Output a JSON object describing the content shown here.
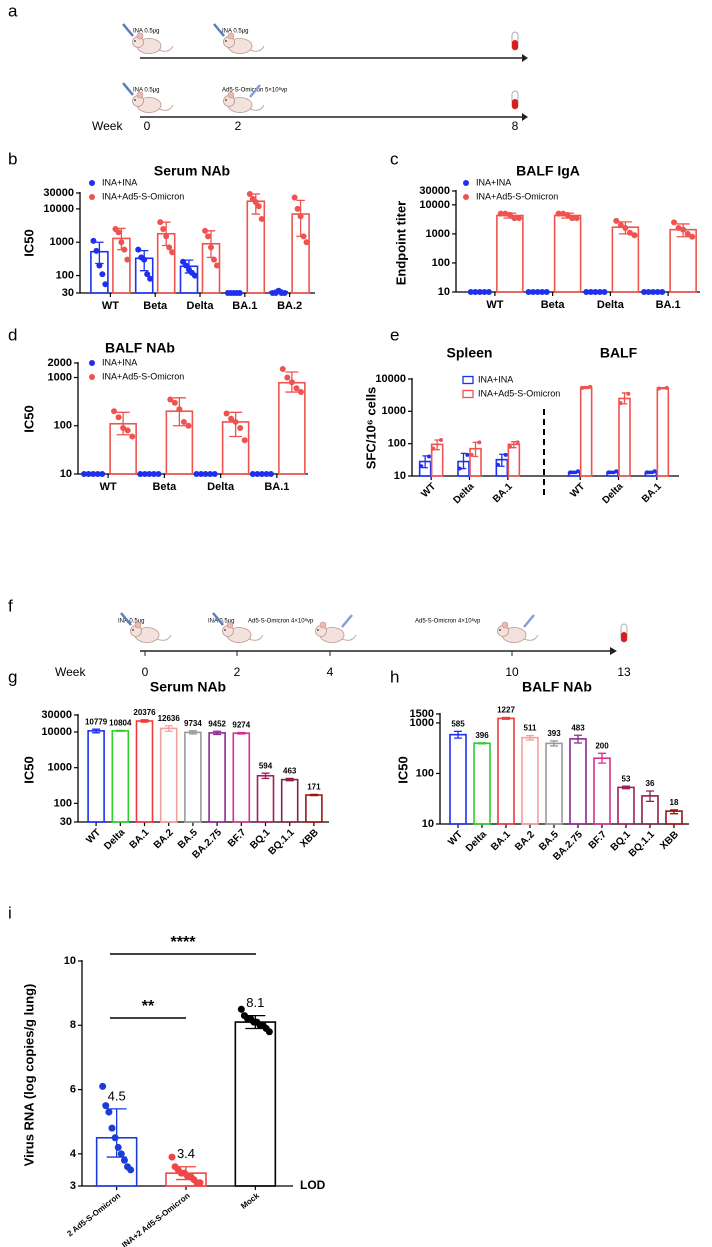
{
  "panel_labels": [
    "a",
    "b",
    "c",
    "d",
    "e",
    "f",
    "g",
    "h",
    "i"
  ],
  "schedule_a": {
    "rows": [
      [
        "INA 0.5μg",
        "INA 0.5μg"
      ],
      [
        "INA 0.5μg",
        "Ad5-S-Omicron 5×10⁸vp"
      ]
    ],
    "axis_label": "Week",
    "ticks": [
      0,
      2,
      8
    ]
  },
  "schedule_f": {
    "rows": [
      [
        "INA 0.5μg",
        "INA 0.5μg",
        "Ad5-S-Omicron 4×10⁸vp",
        "Ad5-S-Omicron 4×10⁸vp"
      ]
    ],
    "axis_label": "Week",
    "ticks": [
      0,
      2,
      4,
      10,
      13
    ]
  },
  "chart_data": [
    {
      "type": "bar",
      "title": "Serum NAb",
      "y_label": "IC50",
      "log_scale": true,
      "ylim": [
        30,
        30000
      ],
      "yticks": [
        30,
        100,
        1000,
        10000,
        30000
      ],
      "categories": [
        "WT",
        "Beta",
        "Delta",
        "BA.1",
        "BA.2"
      ],
      "legend": "top-left",
      "legend_marker": "circle",
      "series": [
        {
          "name": "INA+INA",
          "color": "#1f2ff0",
          "values": [
            520,
            330,
            190,
            30,
            33
          ],
          "errors": [
            [
              230,
              1000
            ],
            [
              140,
              560
            ],
            [
              120,
              290
            ],
            [
              30,
              30
            ],
            [
              30,
              37
            ]
          ],
          "points": [
            [
              1100,
              550,
              200,
              110,
              55
            ],
            [
              600,
              350,
              300,
              110,
              80
            ],
            [
              260,
              200,
              150,
              120,
              100
            ],
            [
              30,
              30,
              30,
              30,
              30
            ],
            [
              30,
              30,
              35,
              30,
              30
            ]
          ]
        },
        {
          "name": "INA+Ad5-S-Omicron",
          "color": "#ef5350",
          "values": [
            1300,
            1800,
            900,
            17000,
            7000
          ],
          "errors": [
            [
              600,
              2600
            ],
            [
              800,
              4000
            ],
            [
              350,
              2200
            ],
            [
              7000,
              28000
            ],
            [
              1500,
              18000
            ]
          ],
          "points": [
            [
              2500,
              2000,
              1000,
              600,
              300
            ],
            [
              4000,
              2500,
              1500,
              700,
              500
            ],
            [
              2200,
              1500,
              700,
              300,
              200
            ],
            [
              28000,
              20000,
              16000,
              12000,
              5000
            ],
            [
              22000,
              10000,
              6000,
              1500,
              1000
            ]
          ]
        }
      ]
    },
    {
      "type": "bar",
      "title": "BALF IgA",
      "y_label": "Endpoint  titer",
      "log_scale": true,
      "ylim": [
        10,
        30000
      ],
      "yticks": [
        10,
        100,
        1000,
        10000,
        30000
      ],
      "categories": [
        "WT",
        "Beta",
        "Delta",
        "BA.1"
      ],
      "legend": "top-left",
      "legend_marker": "circle",
      "series": [
        {
          "name": "INA+INA",
          "color": "#1f2ff0",
          "values": [
            10,
            10,
            10,
            10
          ],
          "errors": [
            [
              10,
              10
            ],
            [
              10,
              10
            ],
            [
              10,
              10
            ],
            [
              10,
              10
            ]
          ],
          "points": [
            [
              10,
              10,
              10,
              10,
              10
            ],
            [
              10,
              10,
              10,
              10,
              10
            ],
            [
              10,
              10,
              10,
              10,
              10
            ],
            [
              10,
              10,
              10,
              10,
              10
            ]
          ]
        },
        {
          "name": "INA+Ad5-S-Omicron",
          "color": "#ef5350",
          "values": [
            4300,
            4300,
            1700,
            1400
          ],
          "errors": [
            [
              3500,
              5200
            ],
            [
              3500,
              5200
            ],
            [
              1000,
              2600
            ],
            [
              800,
              2200
            ]
          ],
          "points": [
            [
              5000,
              5000,
              4500,
              3500,
              3500
            ],
            [
              5000,
              5000,
              4500,
              3500,
              3500
            ],
            [
              2800,
              2000,
              1600,
              1100,
              900
            ],
            [
              2500,
              1600,
              1400,
              1000,
              800
            ]
          ]
        }
      ]
    },
    {
      "type": "bar",
      "title": "BALF NAb",
      "y_label": "IC50",
      "log_scale": true,
      "ylim": [
        10,
        2000
      ],
      "yticks": [
        10,
        100,
        1000,
        2000
      ],
      "categories": [
        "WT",
        "Beta",
        "Delta",
        "BA.1"
      ],
      "legend": "top-left",
      "legend_marker": "circle",
      "series": [
        {
          "name": "INA+INA",
          "color": "#1f2ff0",
          "values": [
            10,
            10,
            10,
            10
          ],
          "errors": [
            [
              10,
              10
            ],
            [
              10,
              10
            ],
            [
              10,
              10
            ],
            [
              10,
              10
            ]
          ],
          "points": [
            [
              10,
              10,
              10,
              10,
              10
            ],
            [
              10,
              10,
              10,
              10,
              10
            ],
            [
              10,
              10,
              10,
              10,
              10
            ],
            [
              10,
              10,
              10,
              10,
              10
            ]
          ]
        },
        {
          "name": "INA+Ad5-S-Omicron",
          "color": "#ef5350",
          "values": [
            110,
            200,
            120,
            780
          ],
          "errors": [
            [
              65,
              190
            ],
            [
              100,
              380
            ],
            [
              60,
              190
            ],
            [
              500,
              1300
            ]
          ],
          "points": [
            [
              200,
              150,
              90,
              80,
              60
            ],
            [
              350,
              300,
              220,
              120,
              100
            ],
            [
              180,
              140,
              120,
              90,
              50
            ],
            [
              1500,
              1000,
              800,
              600,
              500
            ]
          ]
        }
      ]
    },
    {
      "type": "bar",
      "y_label": "SFC/10⁶ cells",
      "log_scale": true,
      "ylim": [
        10,
        10000
      ],
      "yticks": [
        10,
        100,
        1000,
        10000
      ],
      "categories": [
        "WT",
        "Delta",
        "BA.1",
        "WT",
        "Delta",
        "BA.1"
      ],
      "groups": [
        "Spleen",
        "BALF"
      ],
      "rotate_labels": true,
      "legend": "top-left",
      "legend_marker": "square",
      "series": [
        {
          "name": "INA+INA",
          "color": "#1f2ff0",
          "values": [
            28,
            28,
            32,
            13,
            13,
            13
          ],
          "errors": [
            [
              18,
              42
            ],
            [
              17,
              50
            ],
            [
              20,
              47
            ],
            [
              12,
              14
            ],
            [
              12,
              14
            ],
            [
              12,
              14
            ]
          ],
          "points": [
            [
              20,
              40
            ],
            [
              17,
              45
            ],
            [
              22,
              45
            ],
            [
              13,
              14
            ],
            [
              13,
              14
            ],
            [
              13,
              14
            ]
          ]
        },
        {
          "name": "INA+Ad5-S-Omicron",
          "color": "#ef5350",
          "values": [
            95,
            70,
            95,
            5500,
            2500,
            5200
          ],
          "errors": [
            [
              65,
              130
            ],
            [
              40,
              110
            ],
            [
              75,
              115
            ],
            [
              5100,
              5800
            ],
            [
              1700,
              3700
            ],
            [
              5000,
              5400
            ]
          ],
          "points": [
            [
              70,
              130
            ],
            [
              45,
              110
            ],
            [
              80,
              110
            ],
            [
              5300,
              5700
            ],
            [
              1800,
              3500
            ],
            [
              5100,
              5300
            ]
          ]
        }
      ]
    },
    {
      "type": "bar",
      "title": "Serum NAb",
      "y_label": "IC50",
      "log_scale": true,
      "ylim": [
        30,
        30000
      ],
      "yticks": [
        30,
        100,
        1000,
        10000,
        30000
      ],
      "categories": [
        "WT",
        "Delta",
        "BA.1",
        "BA.2",
        "BA.5",
        "BA.2.75",
        "BF.7",
        "BQ.1",
        "BQ.1.1",
        "XBB"
      ],
      "rotate_labels": true,
      "show_values": true,
      "series": [
        {
          "colors": [
            "#1f2ff0",
            "#2ccf2c",
            "#ef3b3b",
            "#f4a09c",
            "#9a9a9a",
            "#8e2a90",
            "#d6308c",
            "#a0205e",
            "#8a2050",
            "#9e1414"
          ],
          "values": [
            10779,
            10804,
            20376,
            12636,
            9734,
            9452,
            9274,
            594,
            463,
            171
          ],
          "errors": [
            [
              9500,
              12000
            ],
            [
              10500,
              11100
            ],
            [
              19000,
              22000
            ],
            [
              10500,
              15000
            ],
            [
              8800,
              10800
            ],
            [
              8500,
              10500
            ],
            [
              8800,
              9700
            ],
            [
              500,
              700
            ],
            [
              430,
              500
            ],
            [
              165,
              178
            ]
          ]
        }
      ]
    },
    {
      "type": "bar",
      "title": "BALF NAb",
      "y_label": "IC50",
      "log_scale": true,
      "ylim": [
        10,
        1500
      ],
      "yticks": [
        10,
        100,
        1000,
        1500
      ],
      "categories": [
        "WT",
        "Delta",
        "BA.1",
        "BA.2",
        "BA.5",
        "BA.2.75",
        "BF.7",
        "BQ.1",
        "BQ.1.1",
        "XBB"
      ],
      "rotate_labels": true,
      "show_values": true,
      "series": [
        {
          "colors": [
            "#1f2ff0",
            "#2ccf2c",
            "#ef3b3b",
            "#f4a09c",
            "#9a9a9a",
            "#8e2a90",
            "#d6308c",
            "#a0205e",
            "#8a2050",
            "#9e1414"
          ],
          "values": [
            585,
            396,
            1227,
            511,
            393,
            483,
            200,
            53,
            36,
            18
          ],
          "errors": [
            [
              500,
              680
            ],
            [
              385,
              405
            ],
            [
              1180,
              1280
            ],
            [
              460,
              560
            ],
            [
              350,
              440
            ],
            [
              400,
              570
            ],
            [
              160,
              250
            ],
            [
              50,
              56
            ],
            [
              28,
              45
            ],
            [
              16,
              19
            ]
          ]
        }
      ]
    },
    {
      "type": "bar",
      "y_label": "Virus RNA (log copies/g lung)",
      "log_scale": false,
      "ylim": [
        3,
        10
      ],
      "yticks": [
        3,
        4,
        6,
        8,
        10
      ],
      "categories": [
        "2 Ad5-S-Omicron",
        "INA+2 Ad5-S-Omicron",
        "Mock"
      ],
      "rotate_labels": true,
      "show_values": true,
      "significance": [
        "**",
        "****"
      ],
      "limit_label": "LOD",
      "series": [
        {
          "colors": [
            "#1a3cd8",
            "#f04646",
            "#000000"
          ],
          "values": [
            4.5,
            3.4,
            8.1
          ],
          "errors": [
            [
              3.9,
              5.4
            ],
            [
              3.2,
              3.6
            ],
            [
              7.9,
              8.3
            ]
          ],
          "points": [
            [
              6.1,
              5.5,
              5.3,
              4.8,
              4.5,
              4.2,
              4.0,
              3.8,
              3.6,
              3.5
            ],
            [
              3.9,
              3.6,
              3.5,
              3.4,
              3.4,
              3.3,
              3.3,
              3.2,
              3.1,
              3.1
            ],
            [
              8.5,
              8.3,
              8.2,
              8.2,
              8.1,
              8.1,
              8.0,
              8.0,
              7.9,
              7.8
            ]
          ]
        }
      ]
    }
  ]
}
